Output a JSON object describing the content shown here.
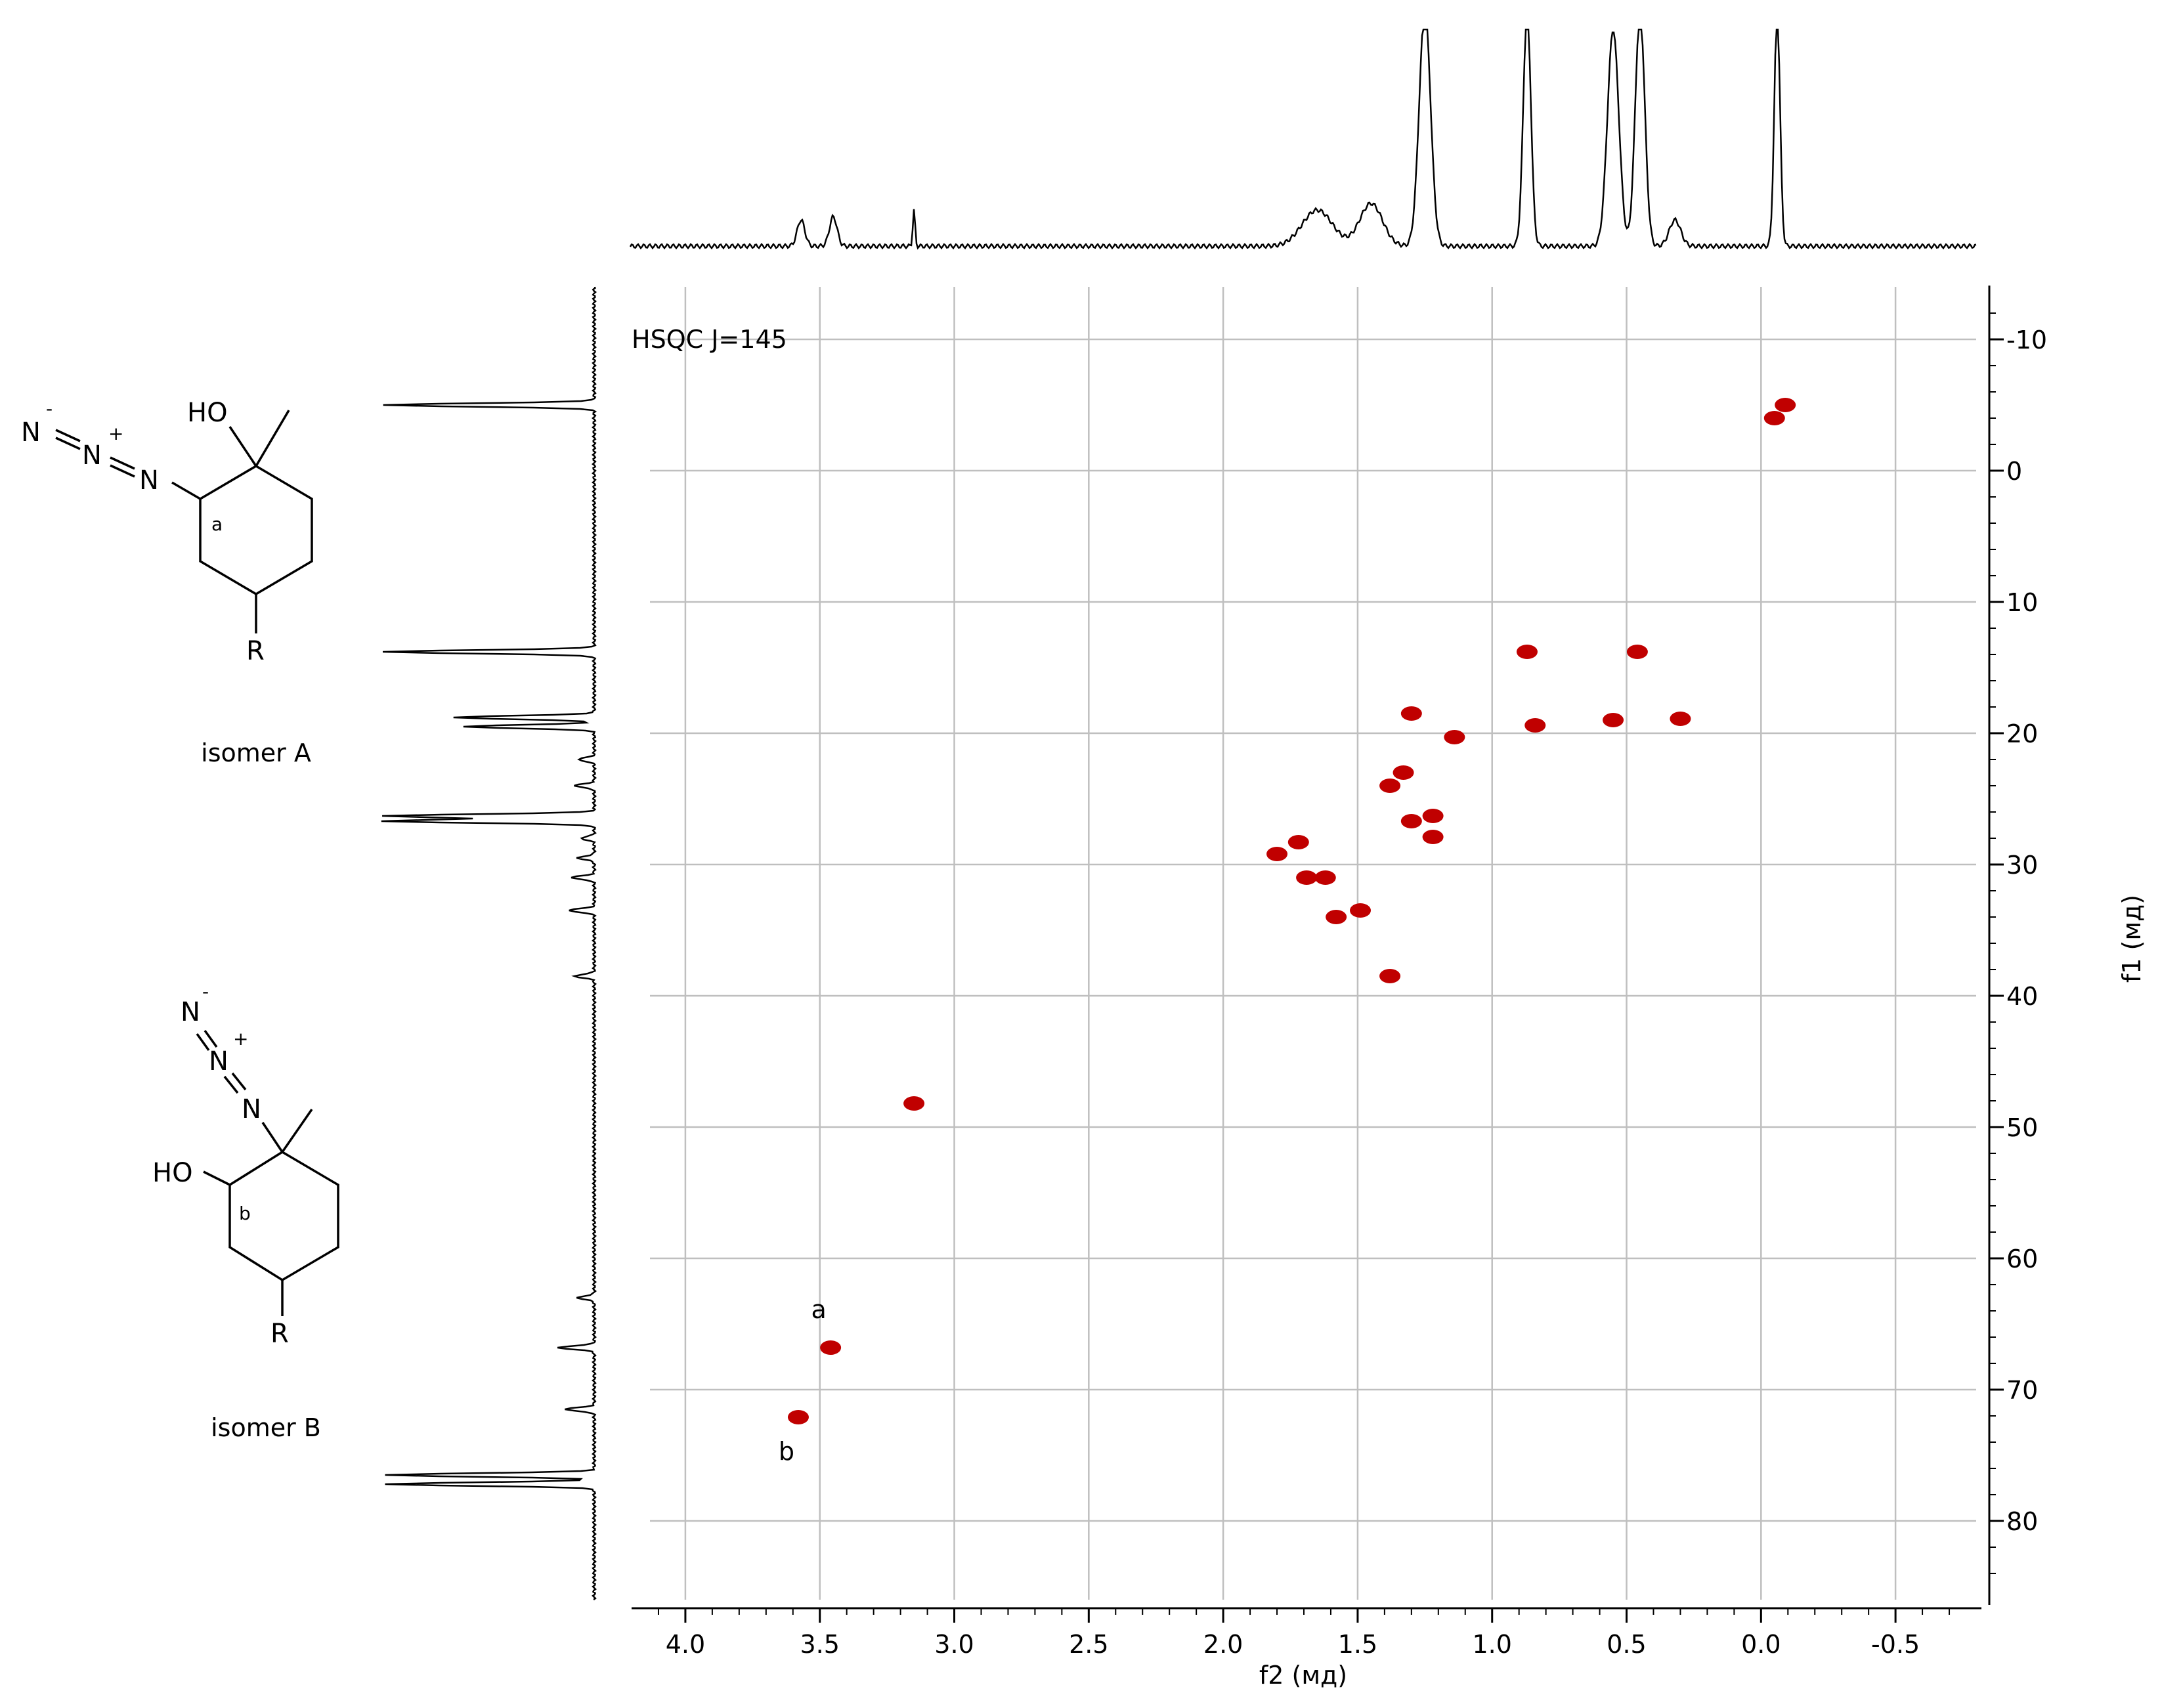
{
  "chart_data": {
    "type": "scatter",
    "title": "HSQC J=145",
    "xlabel": "f2 (мд)",
    "ylabel": "f1 (мд)",
    "xlim": [
      4.2,
      -0.8
    ],
    "ylim": [
      -14,
      86
    ],
    "x_ticks": [
      "4.0",
      "3.5",
      "3.0",
      "2.5",
      "2.0",
      "1.5",
      "1.0",
      "0.5",
      "0.0",
      "-0.5"
    ],
    "x_tick_values": [
      4.0,
      3.5,
      3.0,
      2.5,
      2.0,
      1.5,
      1.0,
      0.5,
      0.0,
      -0.5
    ],
    "y_ticks": [
      "-10",
      "0",
      "10",
      "20",
      "30",
      "40",
      "50",
      "60",
      "70",
      "80"
    ],
    "y_tick_values": [
      -10,
      0,
      10,
      20,
      30,
      40,
      50,
      60,
      70,
      80
    ],
    "grid": true,
    "series": [
      {
        "color": "#c00000",
        "points": [
          {
            "x": 3.58,
            "y": 72.1,
            "label": "b"
          },
          {
            "x": 3.46,
            "y": 66.8,
            "label": "a"
          },
          {
            "x": 3.15,
            "y": 48.2
          },
          {
            "x": 1.8,
            "y": 29.2
          },
          {
            "x": 1.72,
            "y": 28.3
          },
          {
            "x": 1.69,
            "y": 31.0
          },
          {
            "x": 1.62,
            "y": 31.0
          },
          {
            "x": 1.58,
            "y": 34.0
          },
          {
            "x": 1.49,
            "y": 33.5
          },
          {
            "x": 1.38,
            "y": 38.5
          },
          {
            "x": 1.38,
            "y": 24.0
          },
          {
            "x": 1.33,
            "y": 23.0
          },
          {
            "x": 1.3,
            "y": 18.5
          },
          {
            "x": 1.3,
            "y": 26.7
          },
          {
            "x": 1.22,
            "y": 26.3
          },
          {
            "x": 1.22,
            "y": 27.9
          },
          {
            "x": 1.14,
            "y": 20.3
          },
          {
            "x": 0.87,
            "y": 13.8
          },
          {
            "x": 0.84,
            "y": 19.4
          },
          {
            "x": 0.55,
            "y": 19.0
          },
          {
            "x": 0.46,
            "y": 13.8
          },
          {
            "x": 0.3,
            "y": 18.9
          },
          {
            "x": -0.05,
            "y": -4.0
          },
          {
            "x": -0.09,
            "y": -5.0
          }
        ]
      }
    ],
    "annotations": [
      "a",
      "b"
    ]
  },
  "structures": {
    "isomer_a": {
      "caption": "isomer A",
      "labels": {
        "n1": "N",
        "n1_charge": "-",
        "n2": "N",
        "n2_charge": "+",
        "n3": "N",
        "ho": "HO",
        "r": "R",
        "site": "a"
      }
    },
    "isomer_b": {
      "caption": "isomer B",
      "labels": {
        "n1": "N",
        "n1_charge": "-",
        "n2": "N",
        "n2_charge": "+",
        "n3": "N",
        "ho": "HO",
        "r": "R",
        "site": "b"
      }
    }
  },
  "colors": {
    "peaks": "#c00000",
    "grid": "#bfbfbf",
    "axes": "#000000"
  }
}
